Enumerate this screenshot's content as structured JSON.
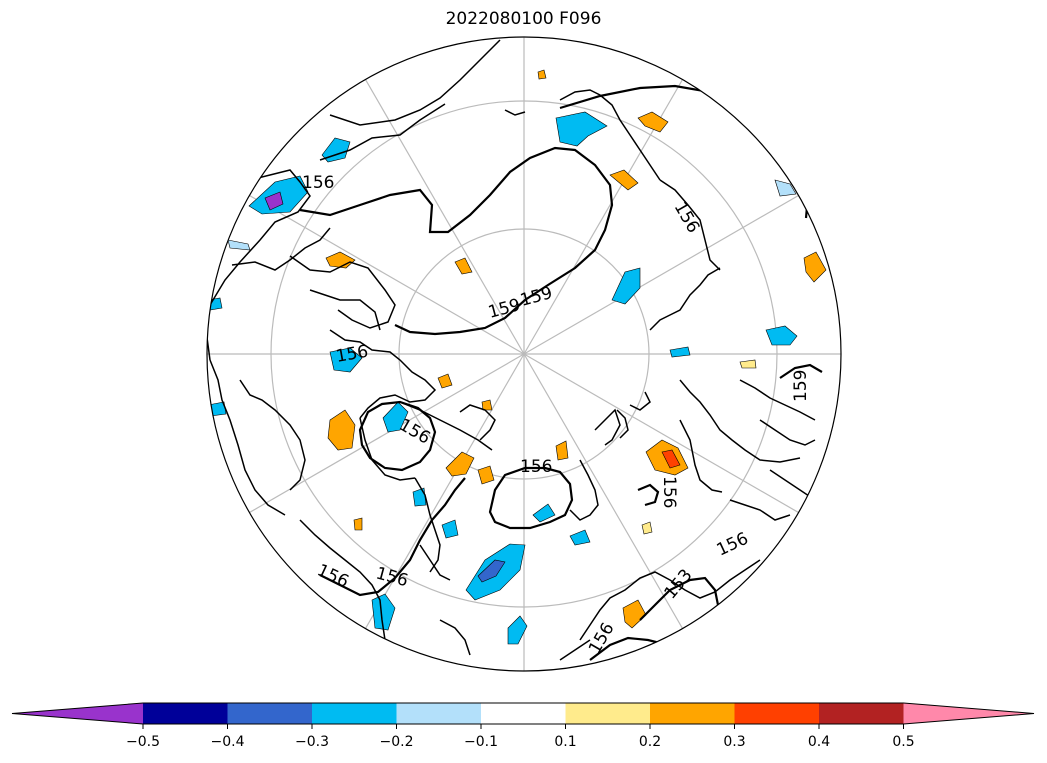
{
  "title": "2022080100 F096",
  "contour_labels": [
    "159",
    "159",
    "156",
    "156",
    "156",
    "156",
    "156",
    "156",
    "156",
    "159",
    "153",
    "156",
    "156",
    "156"
  ],
  "colorbar": {
    "ticks": [
      "−0.5",
      "−0.4",
      "−0.3",
      "−0.2",
      "−0.1",
      "0.1",
      "0.2",
      "0.3",
      "0.4",
      "0.5"
    ],
    "colors": [
      "#9933cc",
      "#000099",
      "#3366cc",
      "#00bbf2",
      "#b3e0fa",
      "#ffffff",
      "#ffeb8c",
      "#ffa500",
      "#ff4000",
      "#b22222",
      "#ff88aa"
    ]
  },
  "colors": {
    "land_outline": "#000000",
    "graticule": "#bbbbbb",
    "contour": "#000000"
  }
}
